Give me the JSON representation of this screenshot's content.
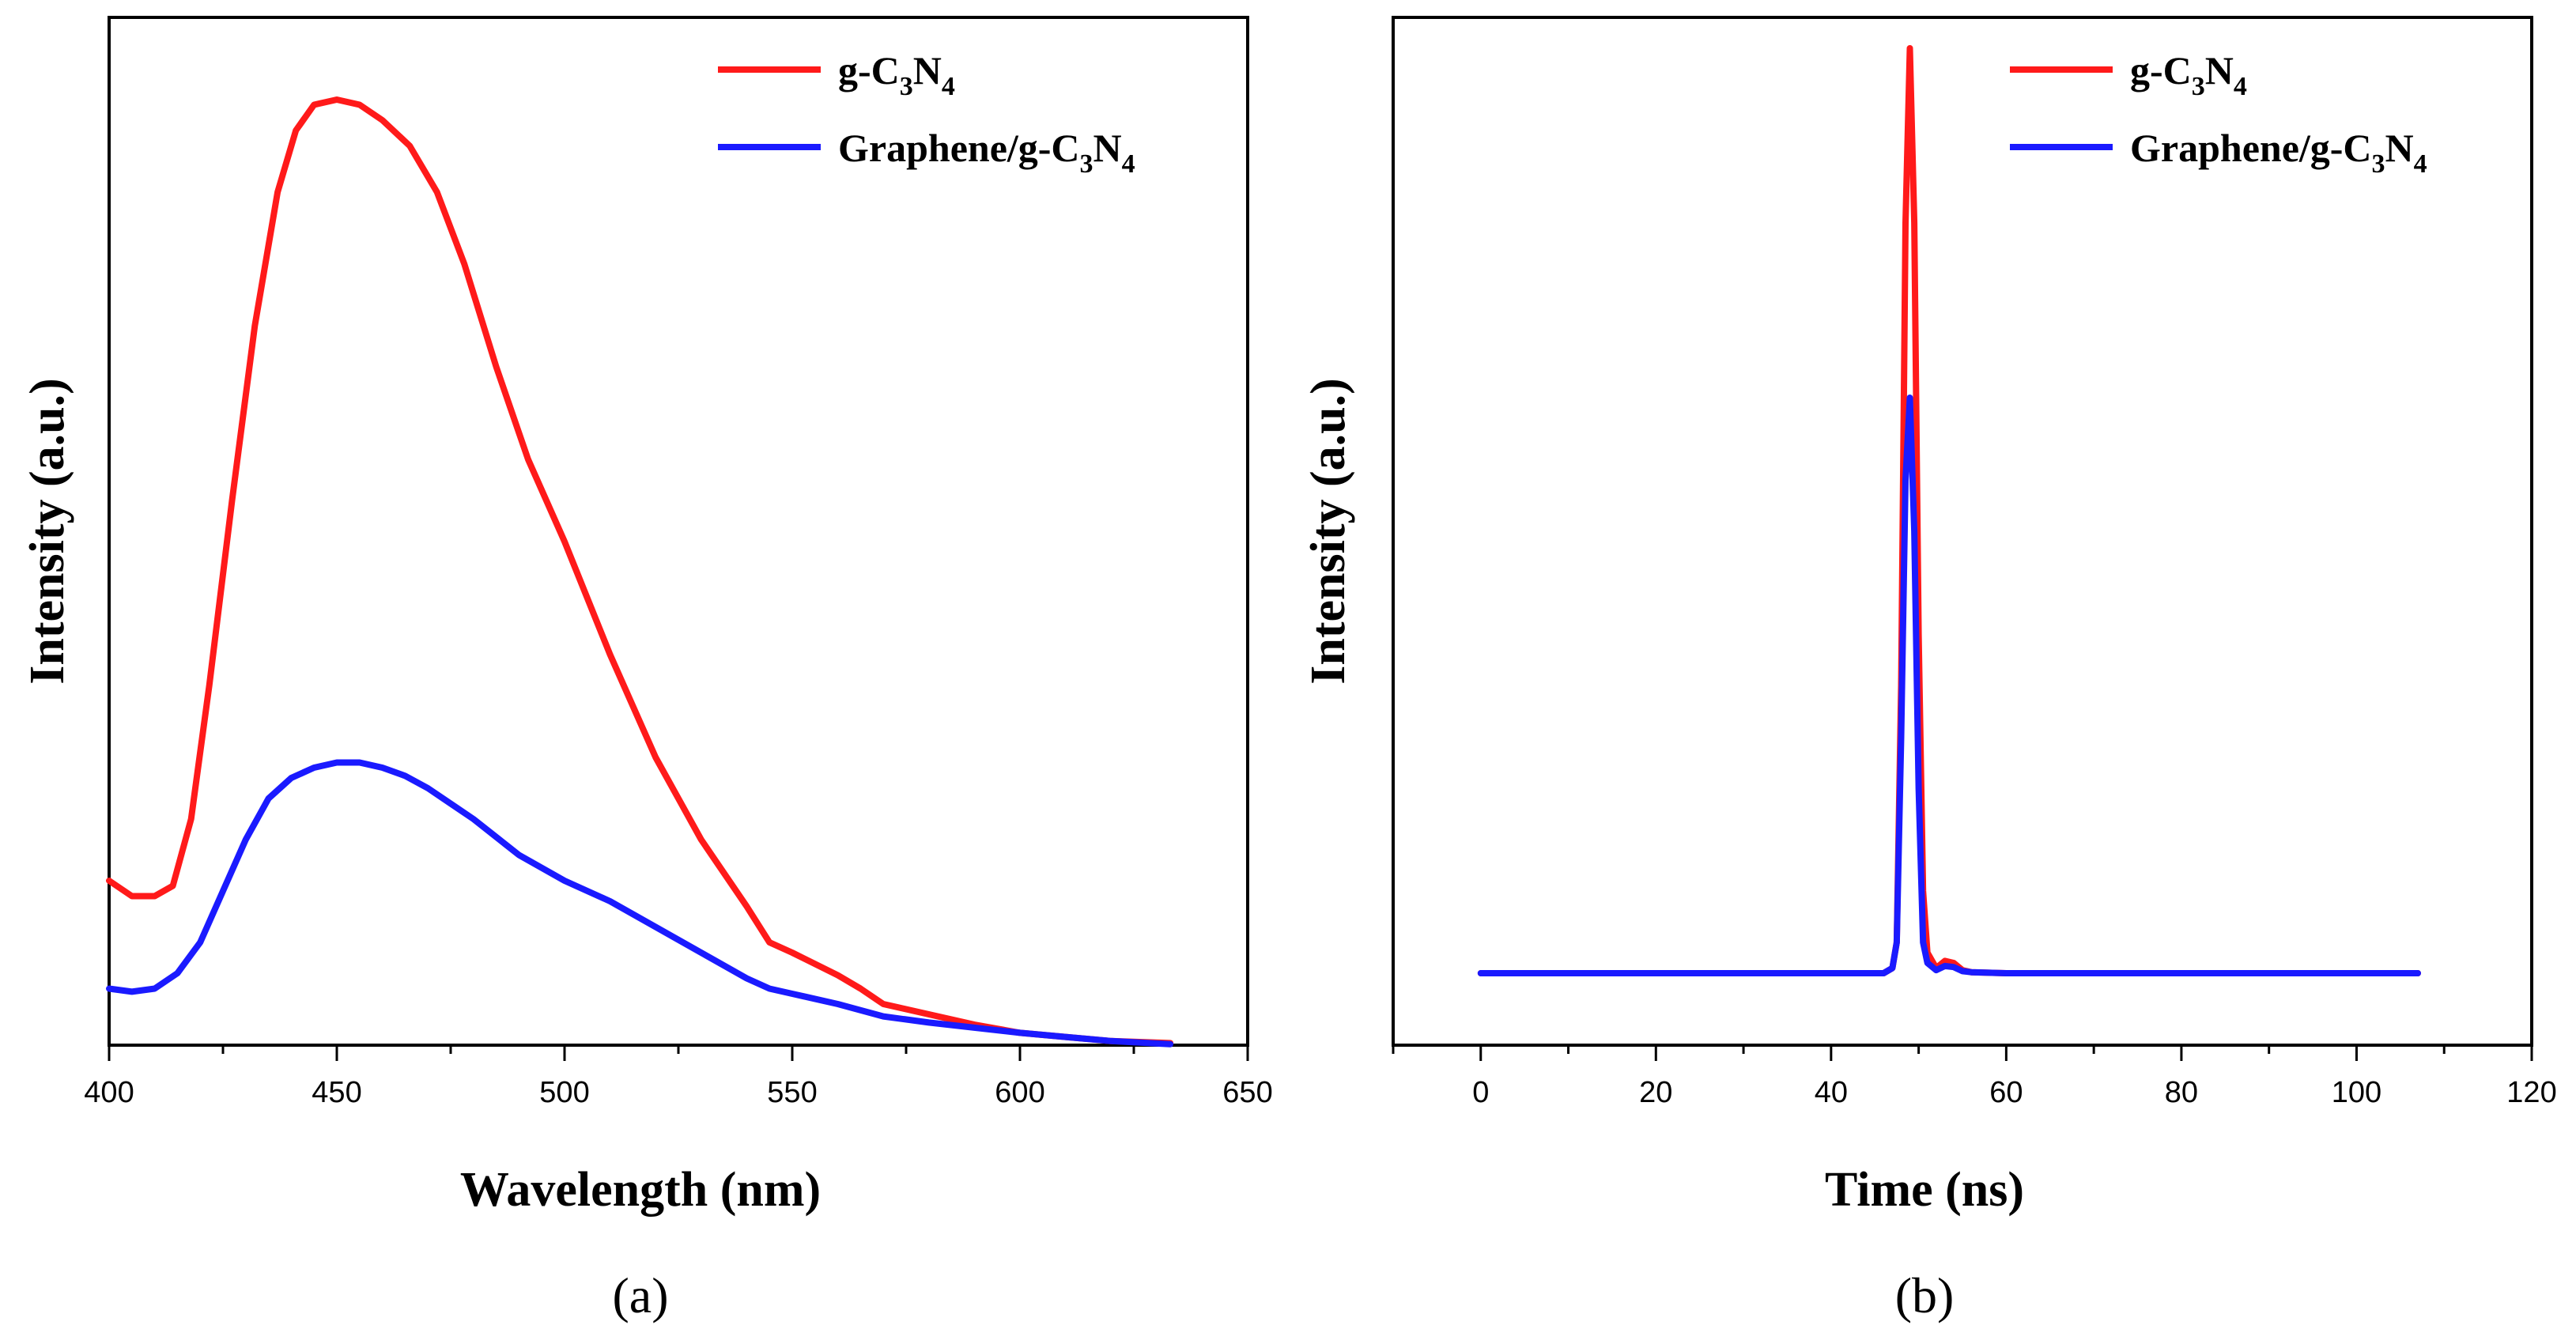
{
  "chart_data": [
    {
      "type": "line",
      "panel_label": "(a)",
      "xlabel": "Wavelength (nm)",
      "ylabel": "Intensity (a.u.)",
      "xlim": [
        400,
        650
      ],
      "ylim": [
        0,
        1.0
      ],
      "xticks": [
        "400",
        "450",
        "500",
        "550",
        "600",
        "650"
      ],
      "y_ticklabels": "none",
      "legend_position": "top-right",
      "series": [
        {
          "name": "g-C3N4",
          "legend": {
            "base": "g-C",
            "sub1": "3",
            "mid": "N",
            "sub2": "4"
          },
          "color": "#ff1a1a",
          "x": [
            400,
            405,
            410,
            414,
            418,
            422,
            427,
            432,
            437,
            441,
            445,
            450,
            455,
            460,
            466,
            472,
            478,
            485,
            492,
            500,
            510,
            520,
            530,
            540,
            545,
            550,
            560,
            565,
            570,
            575,
            580,
            590,
            600,
            610,
            620,
            633
          ],
          "y": [
            0.16,
            0.145,
            0.145,
            0.155,
            0.22,
            0.35,
            0.53,
            0.7,
            0.83,
            0.89,
            0.915,
            0.92,
            0.915,
            0.9,
            0.875,
            0.83,
            0.76,
            0.66,
            0.57,
            0.49,
            0.38,
            0.28,
            0.2,
            0.135,
            0.1,
            0.09,
            0.068,
            0.055,
            0.04,
            0.035,
            0.03,
            0.02,
            0.012,
            0.008,
            0.004,
            0.002
          ]
        },
        {
          "name": "Graphene/g-C3N4",
          "legend": {
            "base": "Graphene/g-C",
            "sub1": "3",
            "mid": "N",
            "sub2": "4"
          },
          "color": "#1a1aff",
          "x": [
            400,
            405,
            410,
            415,
            420,
            425,
            430,
            435,
            440,
            445,
            450,
            455,
            460,
            465,
            470,
            480,
            490,
            500,
            510,
            520,
            530,
            540,
            545,
            550,
            560,
            570,
            580,
            590,
            600,
            610,
            620,
            633
          ],
          "y": [
            0.055,
            0.052,
            0.055,
            0.07,
            0.1,
            0.15,
            0.2,
            0.24,
            0.26,
            0.27,
            0.275,
            0.275,
            0.27,
            0.262,
            0.25,
            0.22,
            0.185,
            0.16,
            0.14,
            0.115,
            0.09,
            0.065,
            0.055,
            0.05,
            0.04,
            0.028,
            0.022,
            0.017,
            0.012,
            0.008,
            0.004,
            0.001
          ]
        }
      ]
    },
    {
      "type": "line",
      "panel_label": "(b)",
      "xlabel": "Time (ns)",
      "ylabel": "Intensity (a.u.)",
      "xlim": [
        -10,
        120
      ],
      "ylim": [
        0,
        1.0
      ],
      "xticks": [
        "0",
        "20",
        "40",
        "60",
        "80",
        "100",
        "120"
      ],
      "y_ticklabels": "none",
      "legend_position": "top-right",
      "series": [
        {
          "name": "g-C3N4",
          "legend": {
            "base": "g-C",
            "sub1": "3",
            "mid": "N",
            "sub2": "4"
          },
          "color": "#ff1a1a",
          "x": [
            0,
            46,
            47,
            47.5,
            48,
            48.5,
            49,
            49.5,
            50,
            50.5,
            51,
            52,
            53,
            54,
            55,
            56,
            60,
            107
          ],
          "y": [
            0.07,
            0.07,
            0.075,
            0.1,
            0.35,
            0.8,
            0.97,
            0.8,
            0.4,
            0.15,
            0.09,
            0.075,
            0.082,
            0.08,
            0.073,
            0.071,
            0.07,
            0.07
          ]
        },
        {
          "name": "Graphene/g-C3N4",
          "legend": {
            "base": "Graphene/g-C",
            "sub1": "3",
            "mid": "N",
            "sub2": "4"
          },
          "color": "#1a1aff",
          "x": [
            0,
            46,
            47,
            47.5,
            48,
            48.5,
            49,
            49.5,
            50,
            50.5,
            51,
            52,
            53,
            54,
            55,
            56,
            60,
            107
          ],
          "y": [
            0.07,
            0.07,
            0.075,
            0.1,
            0.3,
            0.55,
            0.63,
            0.5,
            0.25,
            0.1,
            0.08,
            0.073,
            0.077,
            0.076,
            0.072,
            0.071,
            0.07,
            0.07
          ]
        }
      ]
    }
  ]
}
